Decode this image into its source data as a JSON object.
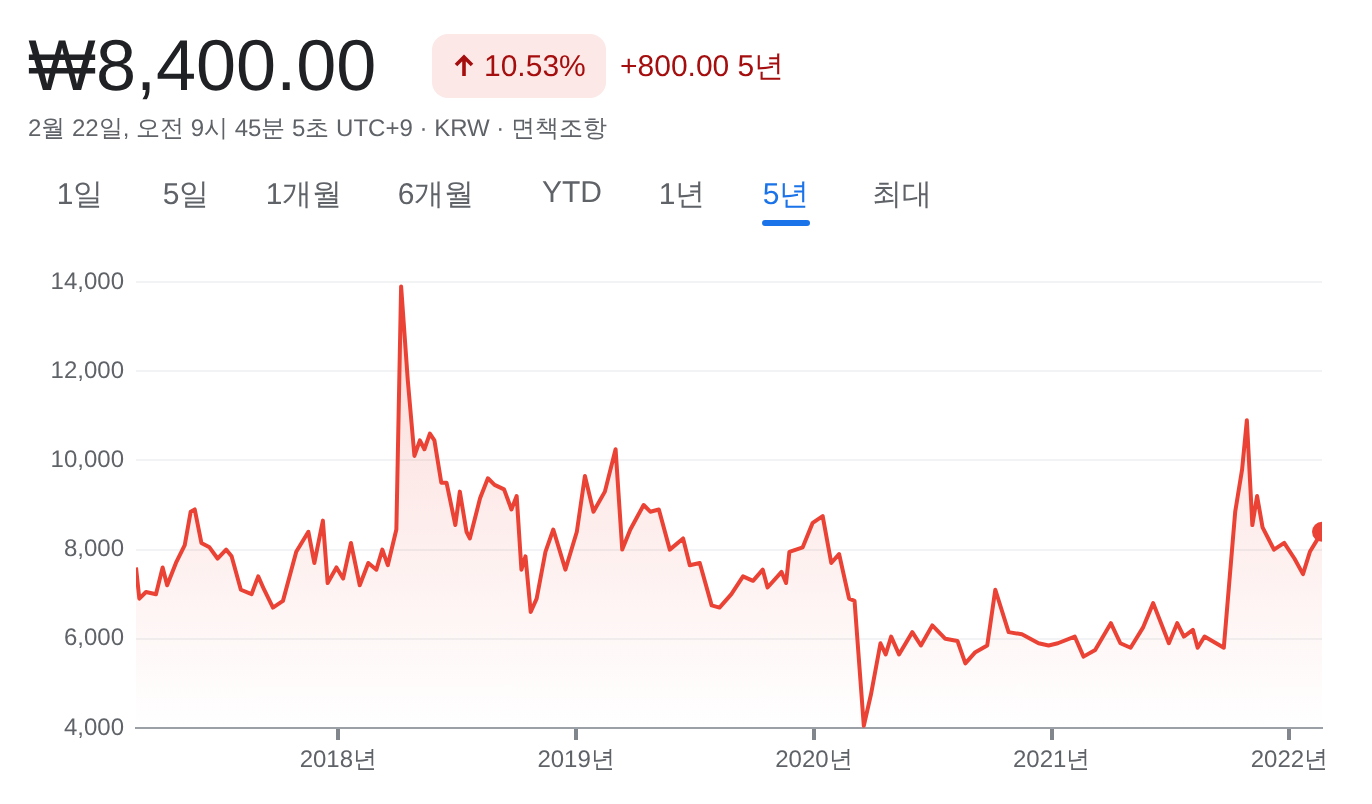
{
  "chart_data": {
    "type": "area",
    "title": "₩8,400.00",
    "subtitle": "2월 22일, 오전 9시 45분 5초 UTC+9 · KRW · 면책조항",
    "annotations": [
      "10.53%",
      "+800.00 5년",
      "1일",
      "5일",
      "1개월",
      "6개월",
      "YTD",
      "1년",
      "5년",
      "최대"
    ],
    "x": [
      2017.149,
      2017.163,
      2017.191,
      2017.233,
      2017.261,
      2017.28,
      2017.317,
      2017.354,
      2017.379,
      2017.396,
      2017.424,
      2017.458,
      2017.492,
      2017.528,
      2017.551,
      2017.59,
      2017.635,
      2017.663,
      2017.688,
      2017.725,
      2017.767,
      2017.823,
      2017.874,
      2017.899,
      2017.935,
      2017.955,
      2017.992,
      2018.02,
      2018.053,
      2018.09,
      2018.126,
      2018.16,
      2018.185,
      2018.208,
      2018.244,
      2018.264,
      2018.292,
      2018.32,
      2018.343,
      2018.362,
      2018.385,
      2018.404,
      2018.433,
      2018.455,
      2018.492,
      2018.511,
      2018.539,
      2018.553,
      2018.596,
      2018.629,
      2018.657,
      2018.697,
      2018.728,
      2018.75,
      2018.77,
      2018.787,
      2018.809,
      2018.834,
      2018.871,
      2018.904,
      2018.955,
      2019.003,
      2019.037,
      2019.073,
      2019.121,
      2019.166,
      2019.194,
      2019.228,
      2019.284,
      2019.312,
      2019.348,
      2019.394,
      2019.45,
      2019.478,
      2019.52,
      2019.57,
      2019.603,
      2019.653,
      2019.702,
      2019.744,
      2019.785,
      2019.805,
      2019.864,
      2019.883,
      2019.897,
      2019.953,
      2019.995,
      2020.037,
      2020.073,
      2020.106,
      2020.148,
      2020.171,
      2020.21,
      2020.24,
      2020.28,
      2020.302,
      2020.325,
      2020.358,
      2020.414,
      2020.45,
      2020.498,
      2020.553,
      2020.604,
      2020.637,
      2020.679,
      2020.729,
      2020.763,
      2020.819,
      2020.875,
      2020.945,
      2020.987,
      2021.026,
      2021.097,
      2021.134,
      2021.183,
      2021.249,
      2021.289,
      2021.332,
      2021.384,
      2021.427,
      2021.493,
      2021.528,
      2021.556,
      2021.594,
      2021.614,
      2021.643,
      2021.724,
      2021.772,
      2021.801,
      2021.821,
      2021.844,
      2021.864,
      2021.887,
      2021.935,
      2021.978,
      2022.021,
      2022.057,
      2022.086,
      2022.137
    ],
    "series": [
      {
        "color": "#ea4335",
        "values": [
          7600,
          6900,
          7050,
          7000,
          7600,
          7200,
          7700,
          8100,
          8850,
          8900,
          8150,
          8050,
          7800,
          8000,
          7850,
          7100,
          7000,
          7400,
          7100,
          6700,
          6850,
          7950,
          8400,
          7700,
          8650,
          7250,
          7600,
          7350,
          8150,
          7200,
          7700,
          7550,
          8000,
          7650,
          8450,
          13900,
          11800,
          10100,
          10450,
          10250,
          10600,
          10450,
          9500,
          9500,
          8550,
          9300,
          8400,
          8250,
          9150,
          9600,
          9450,
          9350,
          8900,
          9200,
          7550,
          7850,
          6600,
          6900,
          7950,
          8450,
          7550,
          8400,
          9650,
          8850,
          9300,
          10250,
          8000,
          8450,
          9000,
          8850,
          8900,
          8000,
          8250,
          7650,
          7700,
          6750,
          6700,
          7000,
          7400,
          7300,
          7550,
          7150,
          7500,
          7250,
          7950,
          8050,
          8600,
          8750,
          7700,
          7900,
          6900,
          6850,
          4050,
          4750,
          5900,
          5650,
          6050,
          5650,
          6150,
          5850,
          6300,
          6000,
          5950,
          5450,
          5700,
          5850,
          7100,
          6150,
          6100,
          5900,
          5850,
          5900,
          6050,
          5600,
          5750,
          6350,
          5900,
          5800,
          6250,
          6800,
          5900,
          6350,
          6050,
          6200,
          5800,
          6050,
          5800,
          8850,
          9800,
          10900,
          8550,
          9200,
          8500,
          8000,
          8150,
          7800,
          7450,
          7950,
          8400
        ]
      }
    ],
    "xlim": [
      2017.149,
      2022.137
    ],
    "xticks": [
      {
        "value": 2018,
        "label": "2018년"
      },
      {
        "value": 2019,
        "label": "2019년"
      },
      {
        "value": 2020,
        "label": "2020년"
      },
      {
        "value": 2021,
        "label": "2021년"
      },
      {
        "value": 2022,
        "label": "2022년"
      }
    ],
    "ylim": [
      4000,
      14000
    ],
    "yticks": [
      {
        "value": 4000,
        "label": "4,000"
      },
      {
        "value": 6000,
        "label": "6,000"
      },
      {
        "value": 8000,
        "label": "8,000"
      },
      {
        "value": 10000,
        "label": "10,000"
      },
      {
        "value": 12000,
        "label": "12,000"
      },
      {
        "value": 14000,
        "label": "14,000"
      }
    ],
    "grid": "y",
    "legend": false
  }
}
